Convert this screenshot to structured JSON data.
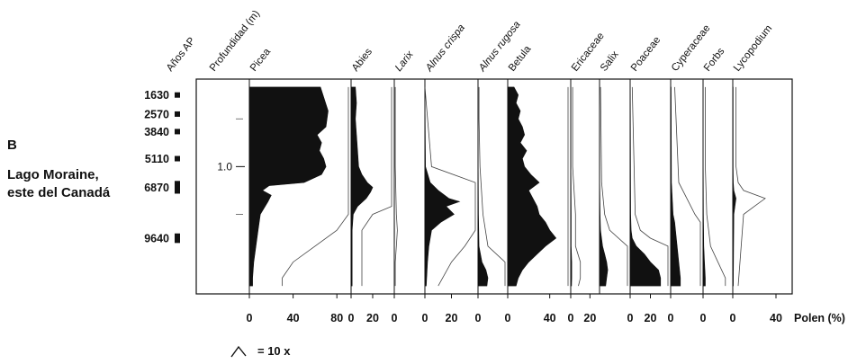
{
  "panel_letter": "B",
  "site": [
    "Lago Moraine,",
    "este del Canadá"
  ],
  "chart_data": {
    "type": "area",
    "col_headers": {
      "age": "Años AP",
      "depth": "Profundidad (m)"
    },
    "ages": [
      {
        "label": "1630",
        "depth": 0.05,
        "extent": 0.03
      },
      {
        "label": "2570",
        "depth": 0.17,
        "extent": 0.03
      },
      {
        "label": "3840",
        "depth": 0.28,
        "extent": 0.03
      },
      {
        "label": "5110",
        "depth": 0.45,
        "extent": 0.03
      },
      {
        "label": "6870",
        "depth": 0.63,
        "extent": 0.08
      },
      {
        "label": "9640",
        "depth": 0.95,
        "extent": 0.06
      }
    ],
    "depth_ticks": [
      {
        "label": "1.0",
        "depth": 0.5
      }
    ],
    "depth_range": [
      -0.05,
      1.3
    ],
    "x_unit_label": "Polen (%)",
    "exaggeration_note": "= 10 x",
    "taxa": [
      {
        "name": "Picea",
        "italic": false,
        "xlim": [
          0,
          93
        ],
        "ticks": [
          0,
          40,
          80
        ],
        "depths": [
          0,
          0.15,
          0.25,
          0.3,
          0.35,
          0.4,
          0.45,
          0.5,
          0.55,
          0.6,
          0.62,
          0.65,
          0.68,
          0.72,
          0.8,
          0.9,
          1.0,
          1.1,
          1.2,
          1.25
        ],
        "values": [
          65,
          72,
          70,
          62,
          66,
          64,
          68,
          70,
          66,
          50,
          18,
          12,
          20,
          17,
          10,
          8,
          6,
          4,
          3,
          3
        ]
      },
      {
        "name": "Abies",
        "italic": false,
        "xlim": [
          0,
          40
        ],
        "ticks": [
          0,
          20
        ],
        "depths": [
          0,
          0.1,
          0.2,
          0.3,
          0.4,
          0.5,
          0.55,
          0.6,
          0.63,
          0.66,
          0.7,
          0.75,
          0.8,
          0.9,
          1.0,
          1.25
        ],
        "values": [
          4,
          5,
          4,
          5,
          6,
          7,
          10,
          15,
          20,
          18,
          14,
          6,
          2,
          1,
          1,
          1
        ]
      },
      {
        "name": "Larix",
        "italic": true,
        "xlim": [
          0,
          30
        ],
        "ticks": [
          0
        ],
        "depths": [
          0,
          0.2,
          0.5,
          0.8,
          0.9,
          1.0,
          1.1,
          1.25
        ],
        "values": [
          0.1,
          0.1,
          0.1,
          0.2,
          0.3,
          0.2,
          0.1,
          0.1
        ]
      },
      {
        "name": "Alnus crispa",
        "italic": true,
        "xlim": [
          0,
          40
        ],
        "ticks": [
          0,
          20
        ],
        "depths": [
          0,
          0.5,
          0.6,
          0.65,
          0.7,
          0.72,
          0.75,
          0.8,
          0.85,
          0.9,
          1.0,
          1.1,
          1.25
        ],
        "values": [
          0,
          0.5,
          4,
          10,
          18,
          26,
          16,
          22,
          12,
          5,
          3,
          2,
          1
        ]
      },
      {
        "name": "Alnus rugosa",
        "italic": true,
        "xlim": [
          0,
          30
        ],
        "ticks": [
          0
        ],
        "depths": [
          0,
          0.2,
          0.5,
          0.8,
          1.0,
          1.1,
          1.15,
          1.2,
          1.25
        ],
        "values": [
          0.1,
          0.1,
          0.2,
          0.5,
          1,
          4,
          8,
          10,
          9
        ]
      },
      {
        "name": "Betula",
        "italic": false,
        "xlim": [
          0,
          60
        ],
        "ticks": [
          0,
          40
        ],
        "depths": [
          0,
          0.05,
          0.1,
          0.15,
          0.2,
          0.25,
          0.3,
          0.35,
          0.4,
          0.45,
          0.5,
          0.55,
          0.6,
          0.65,
          0.7,
          0.75,
          0.8,
          0.85,
          0.9,
          0.95,
          1.0,
          1.05,
          1.1,
          1.15,
          1.2,
          1.25
        ],
        "values": [
          6,
          10,
          8,
          12,
          10,
          14,
          16,
          12,
          18,
          14,
          16,
          22,
          30,
          20,
          24,
          28,
          30,
          36,
          40,
          46,
          36,
          28,
          20,
          14,
          10,
          8
        ]
      },
      {
        "name": "Ericaceae",
        "italic": false,
        "xlim": [
          0,
          30
        ],
        "ticks": [
          0,
          20
        ],
        "depths": [
          0,
          0.5,
          0.8,
          1.0,
          1.1,
          1.2,
          1.25
        ],
        "values": [
          0.2,
          0.2,
          0.5,
          0.5,
          1,
          1,
          0.8
        ]
      },
      {
        "name": "Salix",
        "italic": false,
        "xlim": [
          0,
          30
        ],
        "ticks": [],
        "depths": [
          0,
          0.6,
          0.8,
          0.9,
          1.0,
          1.05,
          1.1,
          1.15,
          1.2,
          1.25
        ],
        "values": [
          0.1,
          0.2,
          0.5,
          1,
          3,
          5,
          7,
          8,
          7,
          6
        ]
      },
      {
        "name": "Poaceae",
        "italic": false,
        "xlim": [
          0,
          40
        ],
        "ticks": [
          0,
          20
        ],
        "depths": [
          0,
          0.8,
          0.9,
          0.95,
          1.0,
          1.05,
          1.1,
          1.15,
          1.2,
          1.25
        ],
        "values": [
          0.2,
          0.5,
          1,
          2,
          6,
          14,
          20,
          28,
          30,
          30
        ]
      },
      {
        "name": "Cyperaceae",
        "italic": false,
        "xlim": [
          0,
          40
        ],
        "ticks": [
          0
        ],
        "depths": [
          0,
          0.6,
          0.7,
          0.8,
          0.85,
          0.9,
          1.0,
          1.1,
          1.2,
          1.25
        ],
        "values": [
          0.5,
          1,
          2,
          3,
          5,
          6,
          8,
          10,
          12,
          12
        ]
      },
      {
        "name": "Forbs",
        "italic": false,
        "xlim": [
          0,
          40
        ],
        "ticks": [
          0
        ],
        "depths": [
          0,
          0.5,
          0.8,
          1.0,
          1.1,
          1.2,
          1.25
        ],
        "values": [
          0.3,
          0.3,
          0.5,
          1,
          2,
          3,
          3
        ]
      },
      {
        "name": "Lycopodium",
        "italic": false,
        "xlim": [
          0,
          55
        ],
        "ticks": [
          0,
          40
        ],
        "depths": [
          0,
          0.5,
          0.6,
          0.65,
          0.7,
          0.75,
          0.8,
          1.25
        ],
        "values": [
          0.3,
          0.3,
          0.5,
          1,
          3,
          2,
          1,
          0.5
        ]
      }
    ]
  }
}
